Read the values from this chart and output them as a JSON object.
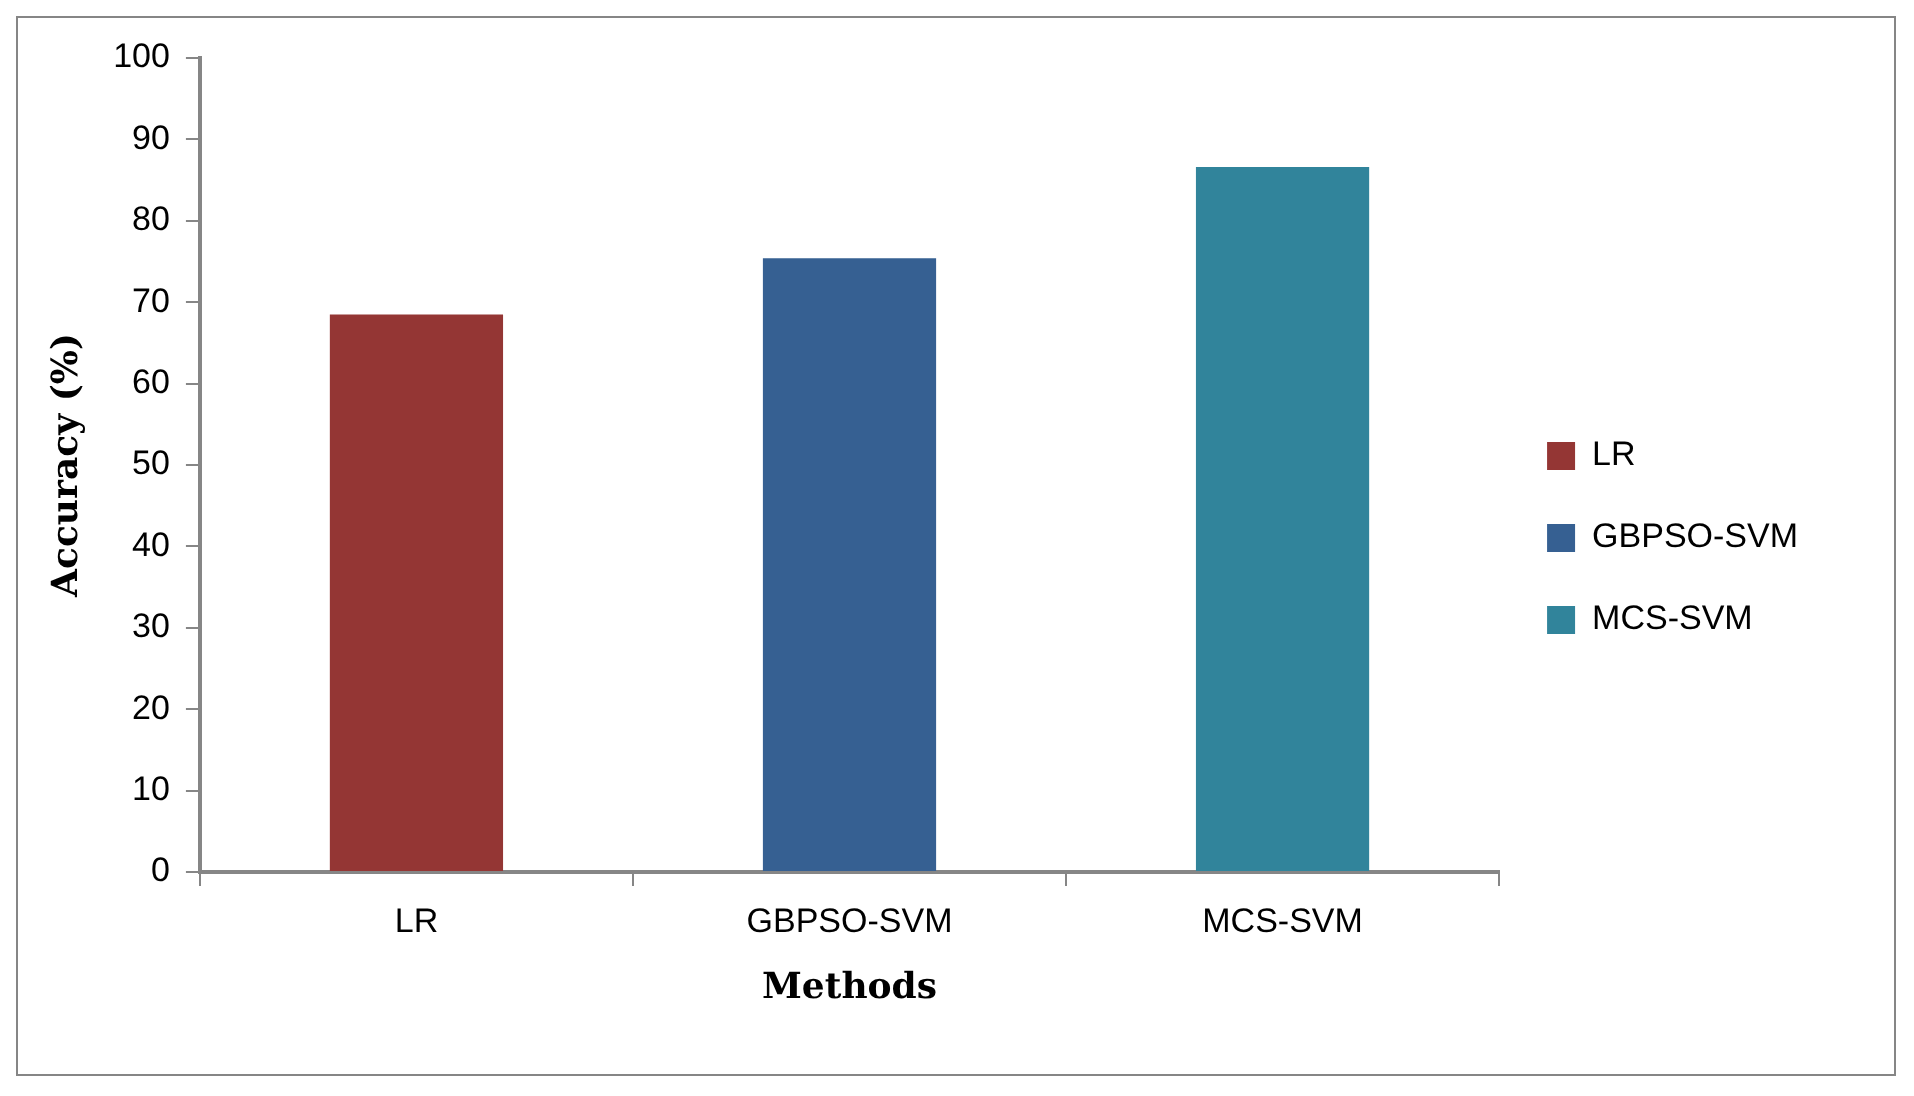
{
  "chart_data": {
    "type": "bar",
    "xlabel": "Methods",
    "ylabel": "Accuracy (%)",
    "categories": [
      "LR",
      "GBPSO-SVM",
      "MCS-SVM"
    ],
    "series": [
      {
        "name": "LR",
        "color": "#943634",
        "values": [
          68.5,
          null,
          null
        ]
      },
      {
        "name": "GBPSO-SVM",
        "color": "#366092",
        "values": [
          null,
          75.4,
          null
        ]
      },
      {
        "name": "MCS-SVM",
        "color": "#31849b",
        "values": [
          null,
          null,
          86.6
        ]
      }
    ],
    "ylim": [
      0,
      100
    ],
    "yticks": [
      0,
      10,
      20,
      30,
      40,
      50,
      60,
      70,
      80,
      90,
      100
    ],
    "grid": false,
    "legend": "right"
  }
}
